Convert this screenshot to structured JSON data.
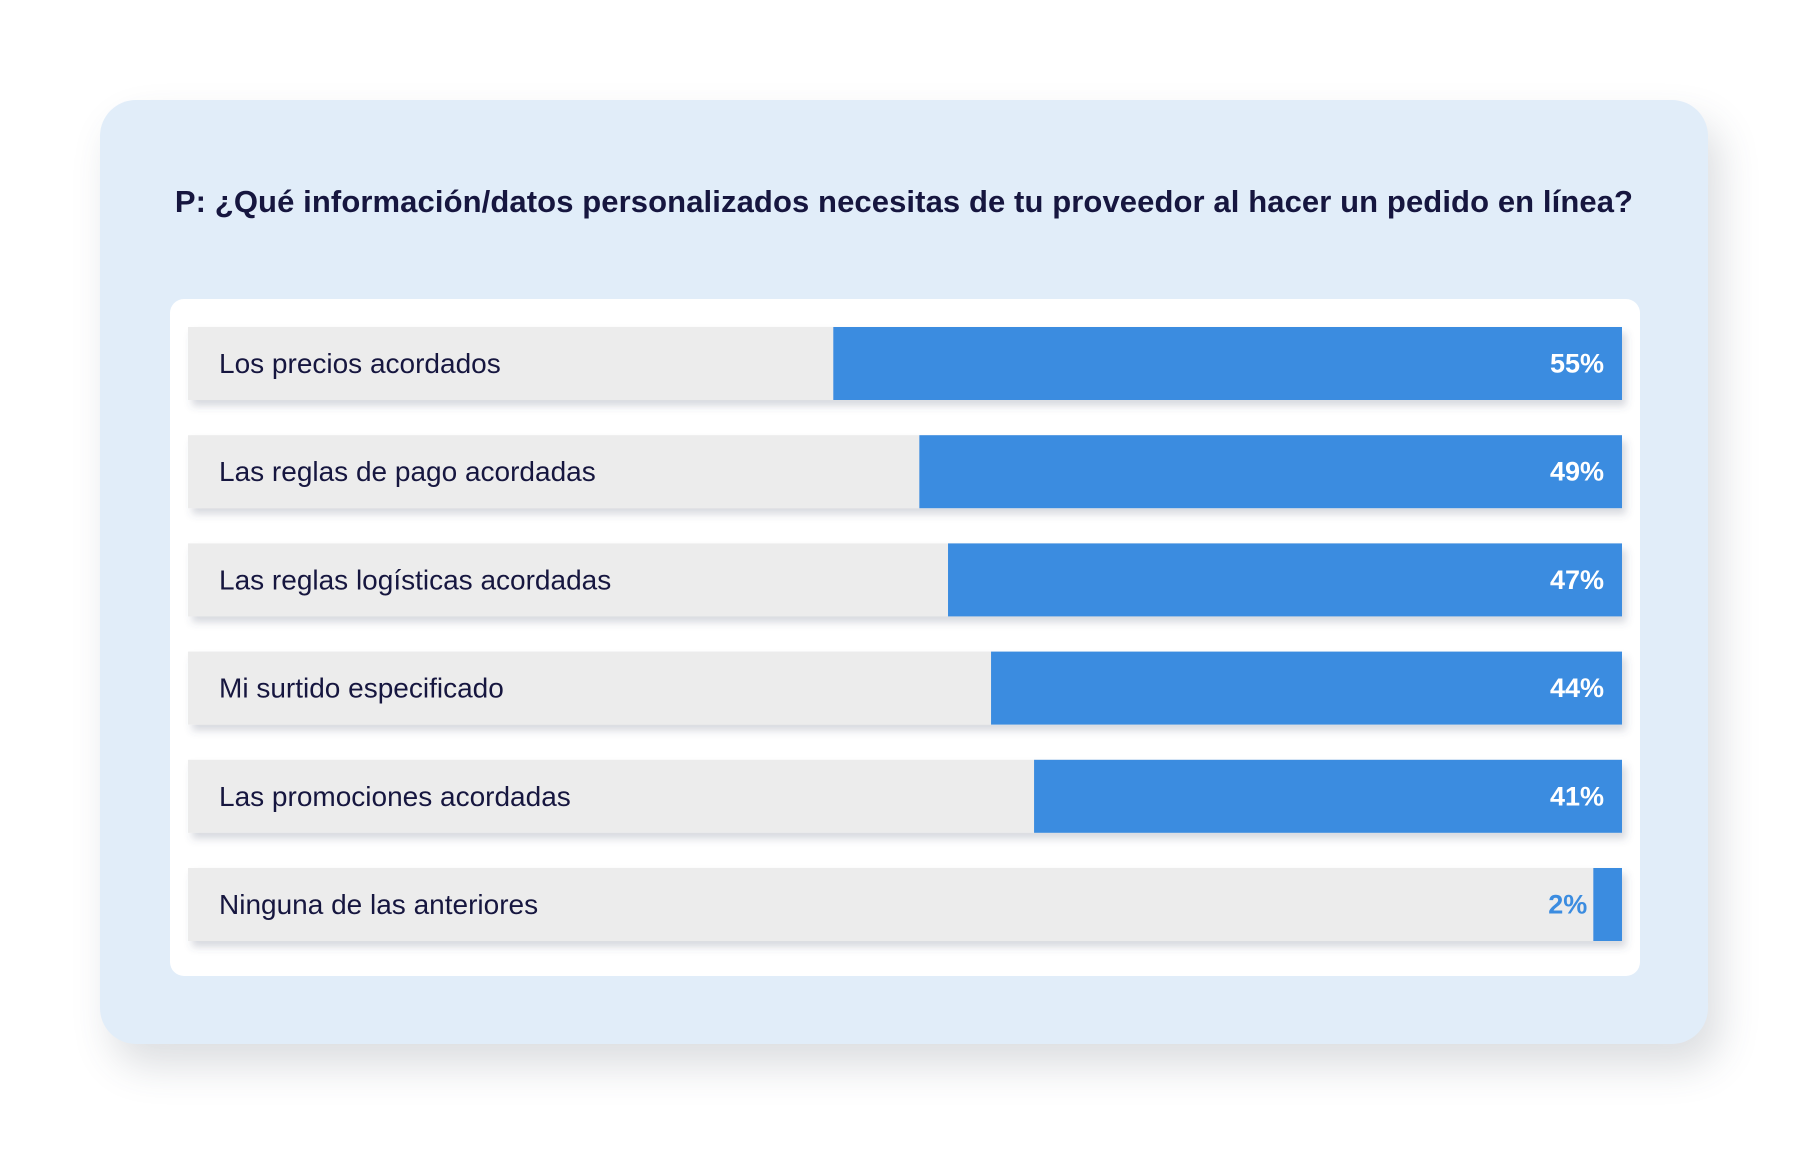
{
  "chart_data": {
    "type": "bar",
    "orientation": "horizontal",
    "title": "P: ¿Qué información/datos personalizados necesitas de tu proveedor al hacer un pedido en línea?",
    "categories": [
      "Los precios acordados",
      "Las reglas de pago acordadas",
      "Las reglas logísticas acordadas",
      "Mi surtido especificado",
      "Las promociones acordadas",
      "Ninguna de las anteriores"
    ],
    "values": [
      55,
      49,
      47,
      44,
      41,
      2
    ],
    "value_labels": [
      "55%",
      "49%",
      "47%",
      "44%",
      "41%",
      "2%"
    ],
    "xlim": [
      0,
      100
    ],
    "unit": "%",
    "colors": {
      "bar": "#3b8ce0",
      "track": "#ececec",
      "label_on_bar": "#ffffff",
      "label_off_bar": "#3b8ce0",
      "text": "#16163f"
    }
  }
}
